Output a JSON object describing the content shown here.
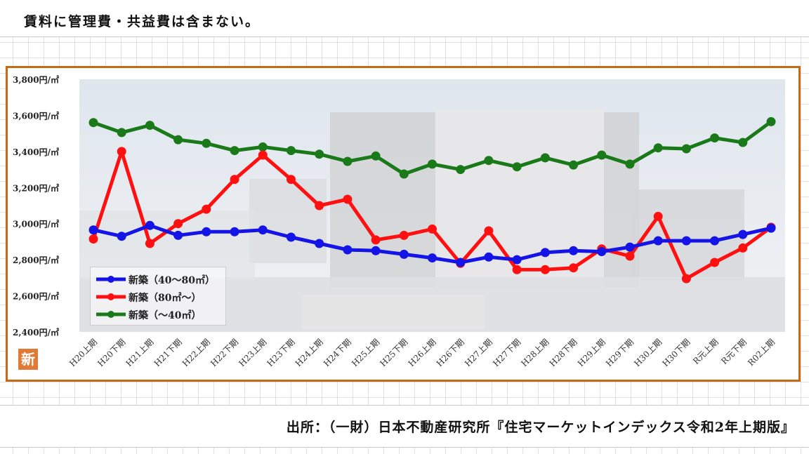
{
  "note": "賃料に管理費・共益費は含まない。",
  "source": "出所：（一財）日本不動産研究所『住宅マーケットインデックス令和2年上期版』",
  "badge": "新",
  "colors": {
    "frame": "#c76a17",
    "blue": "#1414e6",
    "red": "#ff1010",
    "green": "#1a7a1a"
  },
  "chart_data": {
    "type": "line",
    "ylim": [
      2400,
      3800
    ],
    "yticks": [
      {
        "value": 2400,
        "label": "2,400円/㎡"
      },
      {
        "value": 2600,
        "label": "2,600円/㎡"
      },
      {
        "value": 2800,
        "label": "2,800円/㎡"
      },
      {
        "value": 3000,
        "label": "3,000円/㎡"
      },
      {
        "value": 3200,
        "label": "3,200円/㎡"
      },
      {
        "value": 3400,
        "label": "3,400円/㎡"
      },
      {
        "value": 3600,
        "label": "3,600円/㎡"
      },
      {
        "value": 3800,
        "label": "3,800円/㎡"
      }
    ],
    "categories": [
      "H20上期",
      "H20下期",
      "H21上期",
      "H21下期",
      "H22上期",
      "H22下期",
      "H23上期",
      "H23下期",
      "H24上期",
      "H24下期",
      "H25上期",
      "H25下期",
      "H26上期",
      "H26下期",
      "H27上期",
      "H27下期",
      "H28上期",
      "H28下期",
      "H29上期",
      "H29下期",
      "H30上期",
      "H30下期",
      "R元上期",
      "R元下期",
      "R02上期"
    ],
    "legend_position": "bottom-left",
    "series": [
      {
        "name": "新築（40～80㎡）",
        "color": "#1414e6",
        "values": [
          2965,
          2930,
          2990,
          2935,
          2955,
          2955,
          2965,
          2925,
          2890,
          2855,
          2850,
          2830,
          2810,
          2785,
          2815,
          2800,
          2840,
          2850,
          2845,
          2870,
          2905,
          2905,
          2905,
          2940,
          2975
        ]
      },
      {
        "name": "新築（80㎡～）",
        "color": "#ff1010",
        "values": [
          2915,
          3400,
          2890,
          3000,
          3080,
          3245,
          3380,
          3245,
          3100,
          3135,
          2910,
          2935,
          2970,
          2780,
          2960,
          2745,
          2745,
          2755,
          2860,
          2820,
          3040,
          2695,
          2785,
          2865,
          2980
        ]
      },
      {
        "name": "新築（～40㎡）",
        "color": "#1a7a1a",
        "values": [
          3560,
          3505,
          3545,
          3465,
          3445,
          3405,
          3425,
          3405,
          3385,
          3345,
          3375,
          3275,
          3330,
          3300,
          3350,
          3315,
          3365,
          3325,
          3380,
          3330,
          3420,
          3415,
          3475,
          3450,
          3565
        ]
      }
    ]
  }
}
